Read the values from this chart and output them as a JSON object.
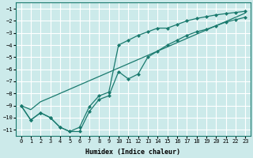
{
  "xlabel": "Humidex (Indice chaleur)",
  "background_color": "#cceaea",
  "grid_color": "#ffffff",
  "line_color": "#1a7a6e",
  "xlim": [
    -0.5,
    23.5
  ],
  "ylim": [
    -11.5,
    -0.5
  ],
  "xticks": [
    0,
    1,
    2,
    3,
    4,
    5,
    6,
    7,
    8,
    9,
    10,
    11,
    12,
    13,
    14,
    15,
    16,
    17,
    18,
    19,
    20,
    21,
    22,
    23
  ],
  "yticks": [
    -1,
    -2,
    -3,
    -4,
    -5,
    -6,
    -7,
    -8,
    -9,
    -10,
    -11
  ],
  "x": [
    0,
    1,
    2,
    3,
    4,
    5,
    6,
    7,
    8,
    9,
    10,
    11,
    12,
    13,
    14,
    15,
    16,
    17,
    18,
    19,
    20,
    21,
    22,
    23
  ],
  "line_straight": [
    -9.0,
    -9.34,
    -8.69,
    -8.35,
    -8.0,
    -7.65,
    -7.3,
    -6.95,
    -6.6,
    -6.25,
    -5.9,
    -5.55,
    -5.2,
    -4.85,
    -4.5,
    -4.15,
    -3.8,
    -3.45,
    -3.1,
    -2.75,
    -2.4,
    -2.05,
    -1.7,
    -1.35
  ],
  "line_upper": [
    -9.0,
    -10.2,
    -9.6,
    -10.0,
    -10.8,
    -11.15,
    -10.8,
    -9.1,
    -8.2,
    -7.9,
    -4.0,
    -3.6,
    -3.2,
    -2.9,
    -2.6,
    -2.6,
    -2.3,
    -2.0,
    -1.8,
    -1.65,
    -1.5,
    -1.4,
    -1.3,
    -1.2
  ],
  "line_lower": [
    -9.0,
    -10.2,
    -9.6,
    -10.0,
    -10.8,
    -11.15,
    -11.15,
    -9.5,
    -8.5,
    -8.2,
    -6.2,
    -6.8,
    -6.4,
    -5.0,
    -4.5,
    -4.0,
    -3.6,
    -3.2,
    -2.9,
    -2.7,
    -2.4,
    -2.1,
    -1.9,
    -1.7
  ]
}
